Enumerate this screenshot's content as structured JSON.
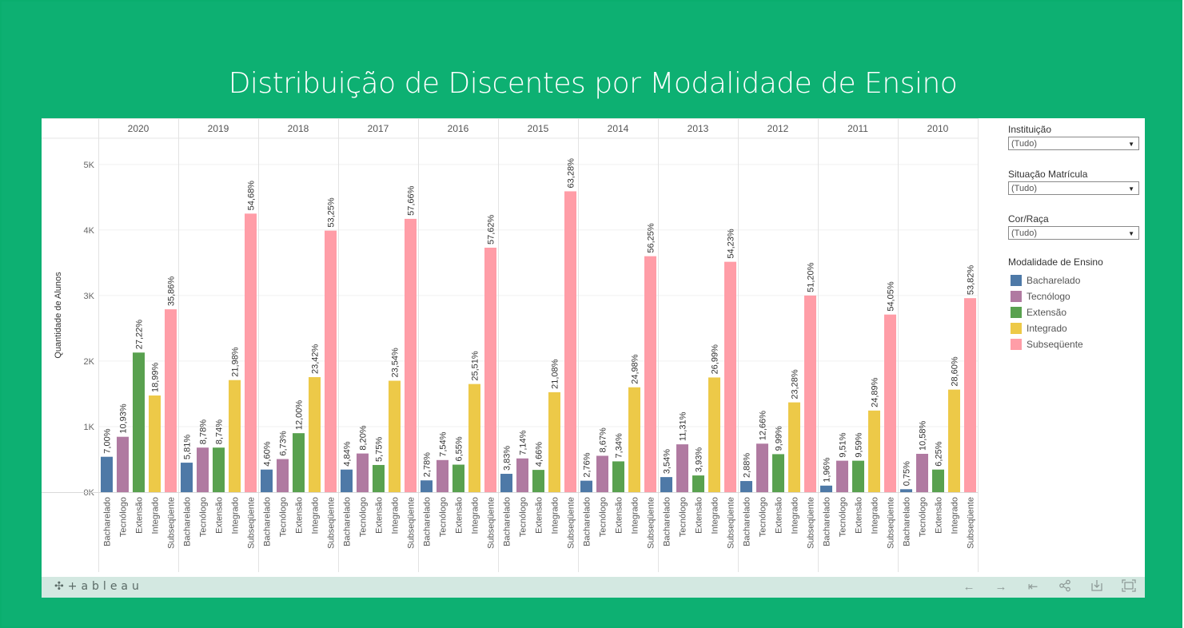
{
  "title": "Distribuição de Discentes por Modalidade de Ensino",
  "filters": [
    {
      "label": "Instituição",
      "value": "(Tudo)"
    },
    {
      "label": "Situação Matrícula",
      "value": "(Tudo)"
    },
    {
      "label": "Cor/Raça",
      "value": "(Tudo)"
    }
  ],
  "legend": {
    "title": "Modalidade de Ensino",
    "items": [
      {
        "label": "Bacharelado",
        "color": "#4e79a7"
      },
      {
        "label": "Tecnólogo",
        "color": "#b07aa1"
      },
      {
        "label": "Extensão",
        "color": "#59a14f"
      },
      {
        "label": "Integrado",
        "color": "#edc948"
      },
      {
        "label": "Subseqüente",
        "color": "#ff9da7"
      }
    ]
  },
  "toolbar": {
    "logo": "+ableau",
    "logo_icon": "tableau-mark-icon",
    "icons": [
      "undo-icon",
      "redo-icon",
      "revert-icon",
      "share-icon",
      "download-icon",
      "fullscreen-icon"
    ]
  },
  "chart_data": {
    "type": "bar",
    "ylabel": "Quantidade de Alunos",
    "ylim": [
      0,
      5400
    ],
    "yticks": [
      0,
      1000,
      2000,
      3000,
      4000,
      5000
    ],
    "ytick_labels": [
      "0K",
      "1K",
      "2K",
      "3K",
      "4K",
      "5K"
    ],
    "grid": true,
    "legend_position": "right",
    "categories": [
      "Bacharelado",
      "Tecnólogo",
      "Extensão",
      "Integrado",
      "Subseqüente"
    ],
    "panels": [
      {
        "year": "2020",
        "values": [
          540,
          845,
          2130,
          1475,
          2790
        ],
        "labels": [
          "7,00%",
          "10,93%",
          "27,22%",
          "18,99%",
          "35,86%"
        ]
      },
      {
        "year": "2019",
        "values": [
          450,
          680,
          680,
          1710,
          4250
        ],
        "labels": [
          "5,81%",
          "8,78%",
          "8,74%",
          "21,98%",
          "54,68%"
        ]
      },
      {
        "year": "2018",
        "values": [
          345,
          505,
          900,
          1755,
          3990
        ],
        "labels": [
          "4,60%",
          "6,73%",
          "12,00%",
          "23,42%",
          "53,25%"
        ]
      },
      {
        "year": "2017",
        "values": [
          345,
          590,
          415,
          1700,
          4170
        ],
        "labels": [
          "4,84%",
          "8,20%",
          "5,75%",
          "23,54%",
          "57,66%"
        ]
      },
      {
        "year": "2016",
        "values": [
          180,
          490,
          420,
          1650,
          3730
        ],
        "labels": [
          "2,78%",
          "7,54%",
          "6,55%",
          "25,51%",
          "57,62%"
        ]
      },
      {
        "year": "2015",
        "values": [
          280,
          515,
          340,
          1525,
          4590
        ],
        "labels": [
          "3,83%",
          "7,14%",
          "4,66%",
          "21,08%",
          "63,28%"
        ]
      },
      {
        "year": "2014",
        "values": [
          175,
          555,
          470,
          1600,
          3600
        ],
        "labels": [
          "2,76%",
          "8,67%",
          "7,34%",
          "24,98%",
          "56,25%"
        ]
      },
      {
        "year": "2013",
        "values": [
          230,
          730,
          255,
          1750,
          3515
        ],
        "labels": [
          "3,54%",
          "11,31%",
          "3,93%",
          "26,99%",
          "54,23%"
        ]
      },
      {
        "year": "2012",
        "values": [
          170,
          740,
          580,
          1370,
          3000
        ],
        "labels": [
          "2,88%",
          "12,66%",
          "9,99%",
          "23,28%",
          "51,20%"
        ]
      },
      {
        "year": "2011",
        "values": [
          100,
          480,
          480,
          1245,
          2710
        ],
        "labels": [
          "1,96%",
          "9,51%",
          "9,59%",
          "24,89%",
          "54,05%"
        ]
      },
      {
        "year": "2010",
        "values": [
          45,
          585,
          345,
          1565,
          2960
        ],
        "labels": [
          "0,75%",
          "10,58%",
          "6,25%",
          "28,60%",
          "53,82%"
        ]
      }
    ]
  }
}
